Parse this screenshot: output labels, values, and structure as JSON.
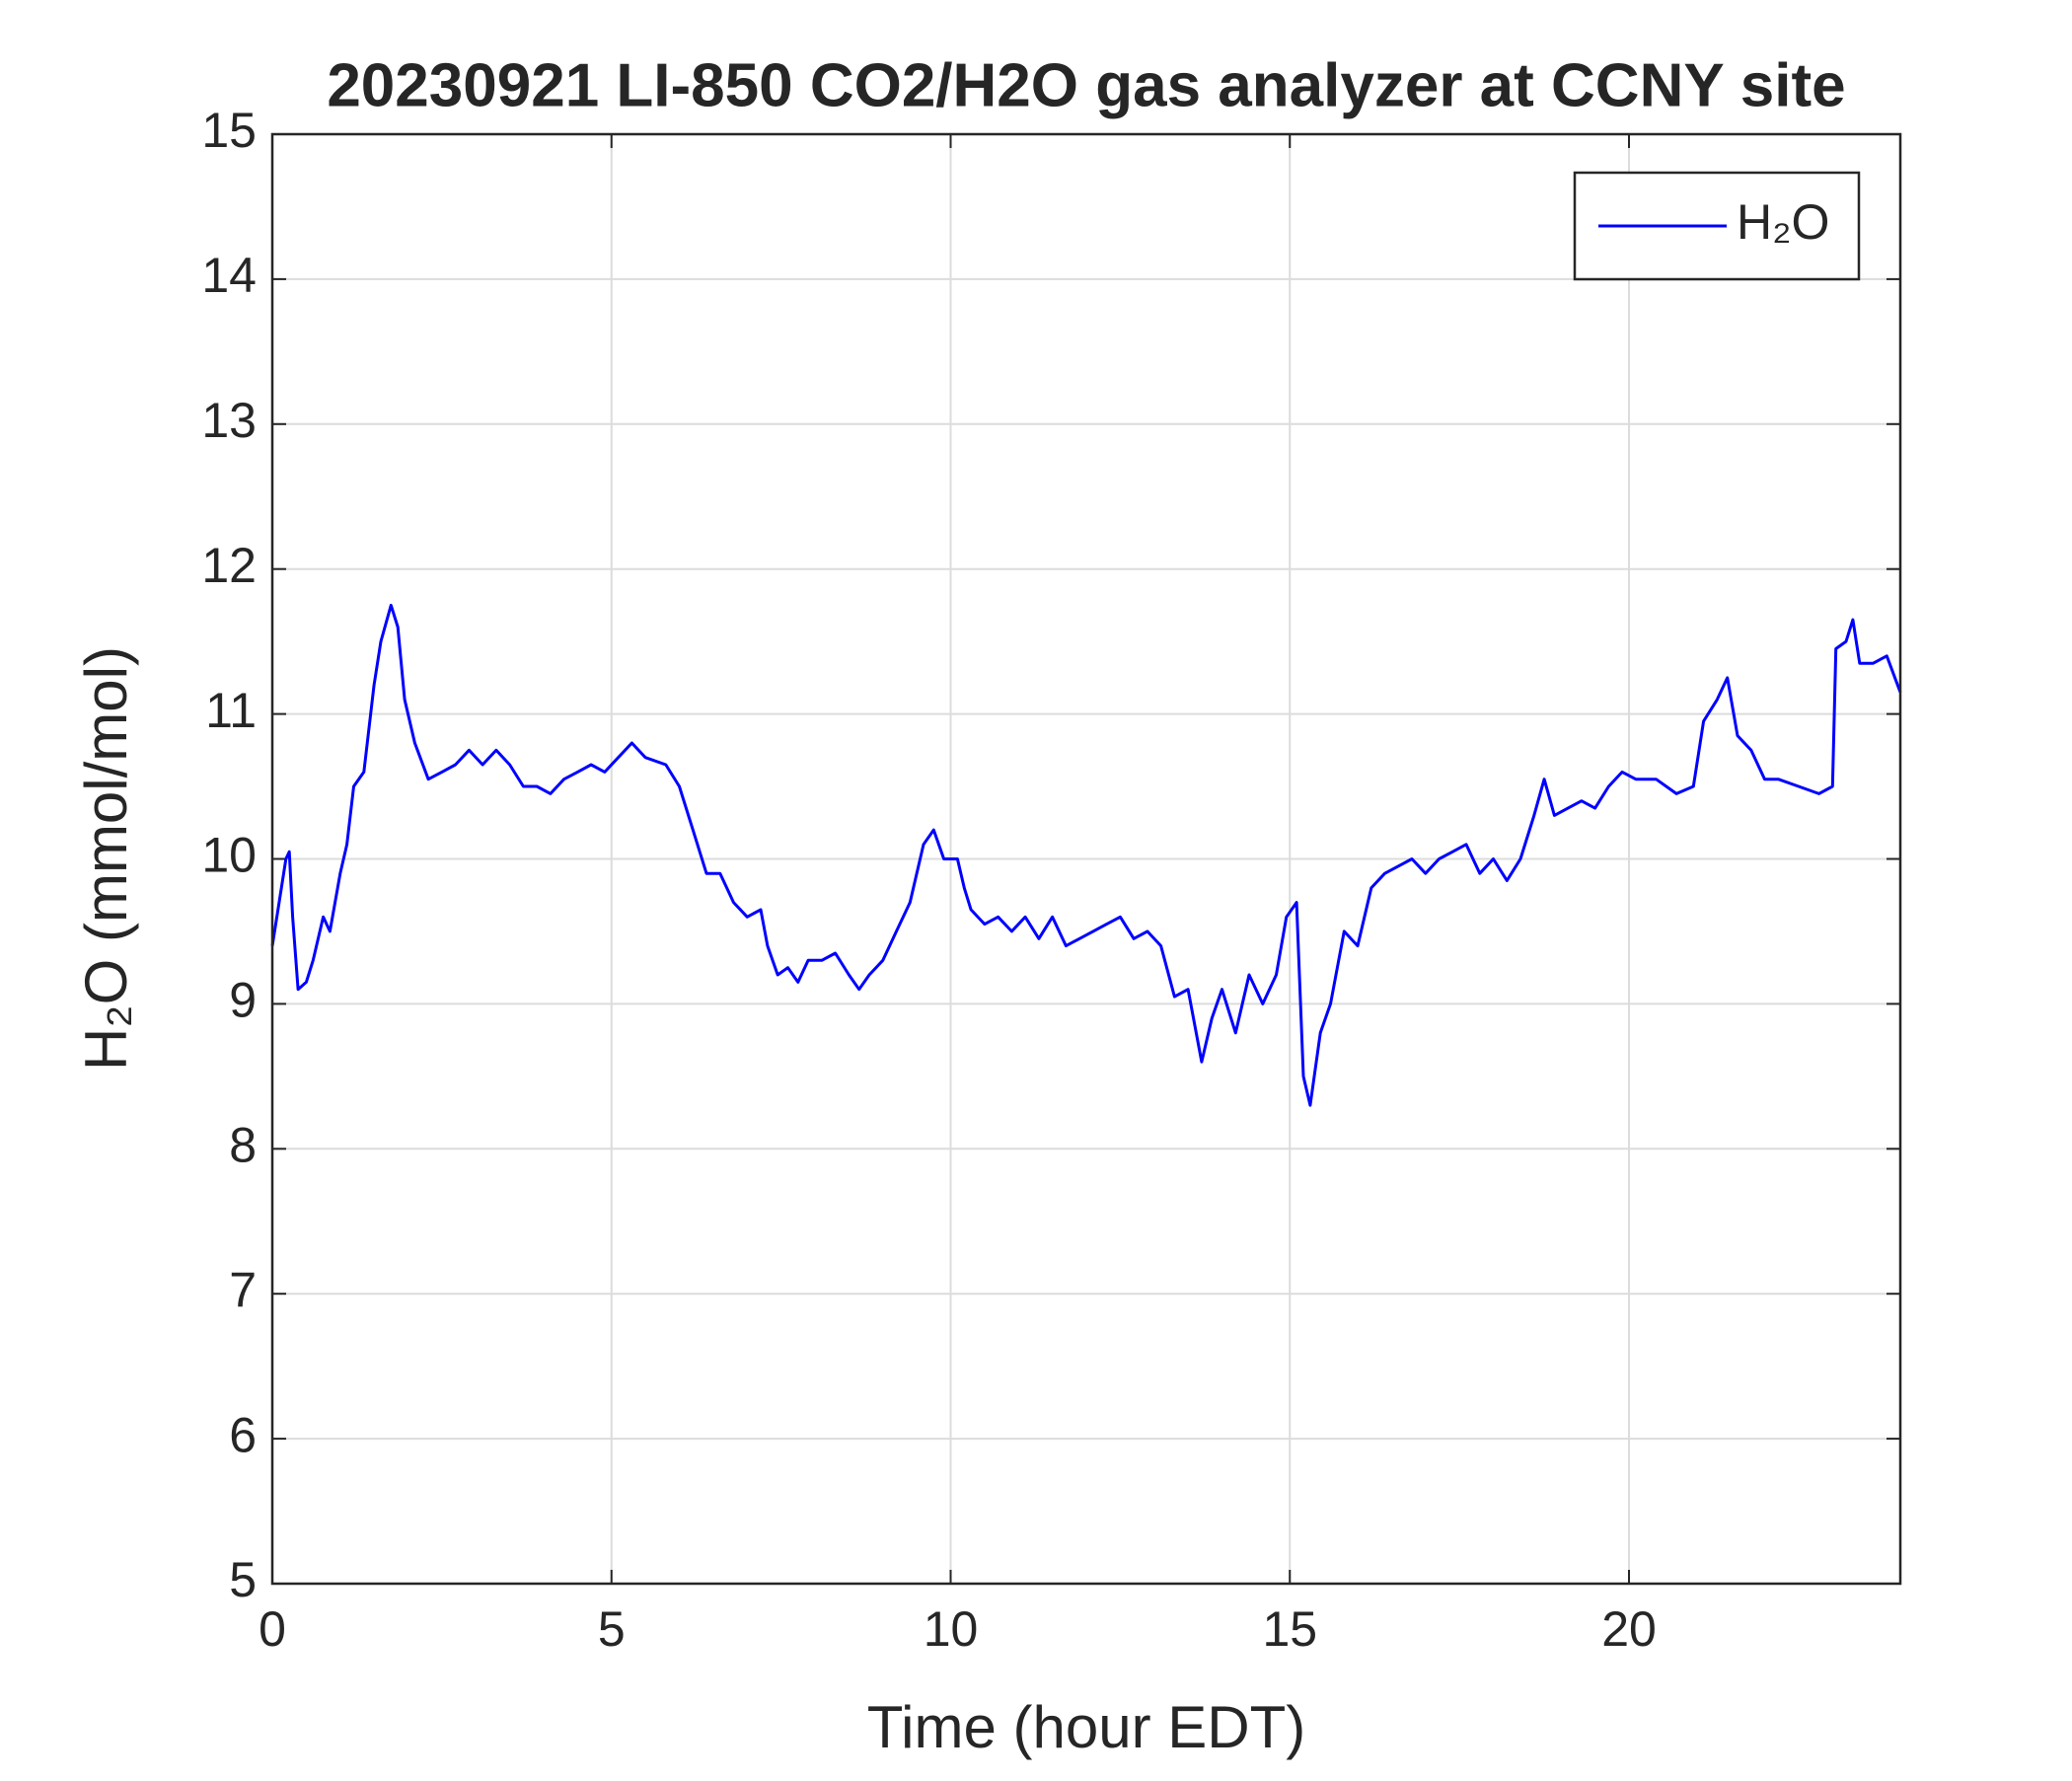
{
  "chart_data": {
    "type": "line",
    "title": "20230921 LI-850 CO2/H2O gas analyzer at CCNY site",
    "xlabel": "Time (hour EDT)",
    "ylabel": "H₂O (mmol/mol)",
    "xlim": [
      0,
      24
    ],
    "xticks": [
      0,
      5,
      10,
      15,
      20
    ],
    "ylim": [
      5,
      15
    ],
    "yticks": [
      5,
      6,
      7,
      8,
      9,
      10,
      11,
      12,
      13,
      14,
      15
    ],
    "grid": true,
    "legend": "upper right",
    "x": [
      0,
      0.1,
      0.2,
      0.25,
      0.3,
      0.38,
      0.5,
      0.6,
      0.75,
      0.85,
      1.0,
      1.1,
      1.2,
      1.35,
      1.5,
      1.6,
      1.75,
      1.85,
      1.95,
      2.1,
      2.3,
      2.5,
      2.7,
      2.9,
      3.1,
      3.3,
      3.5,
      3.7,
      3.9,
      4.1,
      4.3,
      4.5,
      4.7,
      4.9,
      5.1,
      5.3,
      5.5,
      5.8,
      6.0,
      6.2,
      6.4,
      6.6,
      6.8,
      7.0,
      7.2,
      7.3,
      7.45,
      7.6,
      7.75,
      7.9,
      8.1,
      8.3,
      8.5,
      8.65,
      8.8,
      9.0,
      9.2,
      9.4,
      9.6,
      9.75,
      9.9,
      10.1,
      10.2,
      10.3,
      10.5,
      10.7,
      10.9,
      11.1,
      11.3,
      11.5,
      11.7,
      11.9,
      12.1,
      12.3,
      12.5,
      12.7,
      12.9,
      13.1,
      13.3,
      13.5,
      13.7,
      13.85,
      14.0,
      14.2,
      14.4,
      14.6,
      14.8,
      14.95,
      15.1,
      15.2,
      15.3,
      15.45,
      15.6,
      15.8,
      16.0,
      16.2,
      16.4,
      16.6,
      16.8,
      17.0,
      17.2,
      17.4,
      17.6,
      17.8,
      18.0,
      18.2,
      18.4,
      18.6,
      18.75,
      18.9,
      19.1,
      19.3,
      19.5,
      19.7,
      19.9,
      20.1,
      20.4,
      20.7,
      20.95,
      21.1,
      21.3,
      21.45,
      21.6,
      21.8,
      22.0,
      22.2,
      22.5,
      22.8,
      23.0,
      23.05,
      23.2,
      23.3,
      23.4,
      23.6,
      23.8,
      24.0
    ],
    "series": [
      {
        "name": "H₂O",
        "color": "#0000ff",
        "values": [
          9.4,
          9.7,
          10.0,
          10.05,
          9.6,
          9.1,
          9.15,
          9.3,
          9.6,
          9.5,
          9.9,
          10.1,
          10.5,
          10.6,
          11.2,
          11.5,
          11.75,
          11.6,
          11.1,
          10.8,
          10.55,
          10.6,
          10.65,
          10.75,
          10.65,
          10.75,
          10.65,
          10.5,
          10.5,
          10.45,
          10.55,
          10.6,
          10.65,
          10.6,
          10.7,
          10.8,
          10.7,
          10.65,
          10.5,
          10.2,
          9.9,
          9.9,
          9.7,
          9.6,
          9.65,
          9.4,
          9.2,
          9.25,
          9.15,
          9.3,
          9.3,
          9.35,
          9.2,
          9.1,
          9.2,
          9.3,
          9.5,
          9.7,
          10.1,
          10.2,
          10.0,
          10.0,
          9.8,
          9.65,
          9.55,
          9.6,
          9.5,
          9.6,
          9.45,
          9.6,
          9.4,
          9.45,
          9.5,
          9.55,
          9.6,
          9.45,
          9.5,
          9.4,
          9.05,
          9.1,
          8.6,
          8.9,
          9.1,
          8.8,
          9.2,
          9.0,
          9.2,
          9.6,
          9.7,
          8.5,
          8.3,
          8.8,
          9.0,
          9.5,
          9.4,
          9.8,
          9.9,
          9.95,
          10.0,
          9.9,
          10.0,
          10.05,
          10.1,
          9.9,
          10.0,
          9.85,
          10.0,
          10.3,
          10.55,
          10.3,
          10.35,
          10.4,
          10.35,
          10.5,
          10.6,
          10.55,
          10.55,
          10.45,
          10.5,
          10.95,
          11.1,
          11.25,
          10.85,
          10.75,
          10.55,
          10.55,
          10.5,
          10.45,
          10.5,
          11.45,
          11.5,
          11.65,
          11.35,
          11.35,
          11.4,
          11.15
        ]
      }
    ]
  }
}
